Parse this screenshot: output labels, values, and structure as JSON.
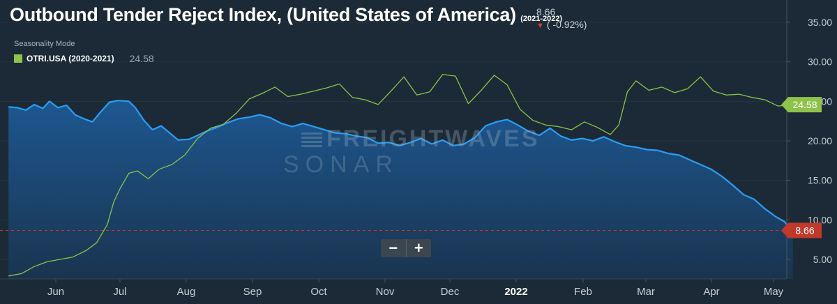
{
  "header": {
    "title": "Outbound Tender Reject Index, (United States of America)",
    "period": "(2021-2022)",
    "current_value": "8.66",
    "change": "( -0.92%)",
    "seasonality_label": "Seasonality Mode",
    "legend_label": "OTRI.USA (2020-2021)",
    "legend_value": "24.58"
  },
  "watermark": {
    "line1": "FREIGHTWAVES",
    "line2": "SONAR"
  },
  "zoom": {
    "minus": "−",
    "plus": "+"
  },
  "colors": {
    "background": "#1b2a36",
    "current_line": "#2a9df4",
    "current_fill": "#1c4f82",
    "prior_line": "#8dc34a",
    "ref_line": "#c0392b",
    "badge_current": "#c0392b",
    "badge_prior": "#8dc34a"
  },
  "chart_data": {
    "type": "area",
    "title": "Outbound Tender Reject Index, (United States of America)",
    "x_ticks": [
      "Jun",
      "Jul",
      "Aug",
      "Sep",
      "Oct",
      "Nov",
      "Dec",
      "2022",
      "Feb",
      "Mar",
      "Apr",
      "May"
    ],
    "y_ticks": [
      "5.00",
      "10.00",
      "15.00",
      "20.00",
      "25.00",
      "30.00",
      "35.00"
    ],
    "ylim": [
      1.5,
      38
    ],
    "x_date_range": [
      "2021-05-10",
      "2022-05-08"
    ],
    "series": [
      {
        "name": "OTRI.USA (2021-2022)",
        "style": "area",
        "points": [
          [
            "2021-05-10",
            24.3
          ],
          [
            "2021-05-14",
            24.2
          ],
          [
            "2021-05-18",
            23.9
          ],
          [
            "2021-05-22",
            24.6
          ],
          [
            "2021-05-26",
            24.1
          ],
          [
            "2021-05-29",
            25.0
          ],
          [
            "2021-06-02",
            24.2
          ],
          [
            "2021-06-06",
            24.5
          ],
          [
            "2021-06-10",
            23.3
          ],
          [
            "2021-06-14",
            22.8
          ],
          [
            "2021-06-18",
            22.4
          ],
          [
            "2021-06-22",
            23.7
          ],
          [
            "2021-06-26",
            24.9
          ],
          [
            "2021-06-30",
            25.1
          ],
          [
            "2021-07-05",
            25.0
          ],
          [
            "2021-07-08",
            24.2
          ],
          [
            "2021-07-12",
            22.6
          ],
          [
            "2021-07-16",
            21.4
          ],
          [
            "2021-07-20",
            21.9
          ],
          [
            "2021-07-24",
            21.0
          ],
          [
            "2021-07-28",
            20.1
          ],
          [
            "2021-08-02",
            20.2
          ],
          [
            "2021-08-06",
            20.7
          ],
          [
            "2021-08-10",
            21.2
          ],
          [
            "2021-08-15",
            21.7
          ],
          [
            "2021-08-20",
            22.3
          ],
          [
            "2021-08-25",
            22.8
          ],
          [
            "2021-08-30",
            23.0
          ],
          [
            "2021-09-04",
            23.3
          ],
          [
            "2021-09-09",
            22.9
          ],
          [
            "2021-09-14",
            22.2
          ],
          [
            "2021-09-19",
            21.8
          ],
          [
            "2021-09-24",
            22.2
          ],
          [
            "2021-09-29",
            21.8
          ],
          [
            "2021-10-04",
            21.4
          ],
          [
            "2021-10-09",
            21.0
          ],
          [
            "2021-10-14",
            20.9
          ],
          [
            "2021-10-19",
            20.6
          ],
          [
            "2021-10-24",
            20.4
          ],
          [
            "2021-10-29",
            19.7
          ],
          [
            "2021-11-03",
            19.8
          ],
          [
            "2021-11-08",
            19.4
          ],
          [
            "2021-11-13",
            19.8
          ],
          [
            "2021-11-18",
            20.3
          ],
          [
            "2021-11-23",
            19.6
          ],
          [
            "2021-11-28",
            20.1
          ],
          [
            "2021-12-03",
            19.4
          ],
          [
            "2021-12-08",
            19.6
          ],
          [
            "2021-12-13",
            20.4
          ],
          [
            "2021-12-18",
            21.9
          ],
          [
            "2021-12-23",
            22.4
          ],
          [
            "2021-12-28",
            22.7
          ],
          [
            "2022-01-02",
            22.0
          ],
          [
            "2022-01-07",
            21.2
          ],
          [
            "2022-01-12",
            20.7
          ],
          [
            "2022-01-17",
            21.6
          ],
          [
            "2022-01-22",
            20.6
          ],
          [
            "2022-01-27",
            20.1
          ],
          [
            "2022-02-01",
            20.3
          ],
          [
            "2022-02-06",
            20.0
          ],
          [
            "2022-02-11",
            20.5
          ],
          [
            "2022-02-16",
            19.9
          ],
          [
            "2022-02-21",
            19.4
          ],
          [
            "2022-02-26",
            19.2
          ],
          [
            "2022-03-03",
            18.9
          ],
          [
            "2022-03-08",
            18.8
          ],
          [
            "2022-03-13",
            18.4
          ],
          [
            "2022-03-18",
            18.2
          ],
          [
            "2022-03-23",
            17.6
          ],
          [
            "2022-03-28",
            17.0
          ],
          [
            "2022-04-02",
            16.4
          ],
          [
            "2022-04-07",
            15.5
          ],
          [
            "2022-04-12",
            14.4
          ],
          [
            "2022-04-17",
            13.2
          ],
          [
            "2022-04-22",
            12.6
          ],
          [
            "2022-04-27",
            11.4
          ],
          [
            "2022-05-02",
            10.4
          ],
          [
            "2022-05-06",
            9.8
          ],
          [
            "2022-05-08",
            9.1
          ],
          [
            "2022-05-10",
            8.66
          ]
        ]
      },
      {
        "name": "OTRI.USA (2020-2021)",
        "style": "line",
        "points": [
          [
            "2021-05-10",
            2.9
          ],
          [
            "2021-05-16",
            3.2
          ],
          [
            "2021-05-22",
            4.1
          ],
          [
            "2021-05-28",
            4.7
          ],
          [
            "2021-06-03",
            5.0
          ],
          [
            "2021-06-09",
            5.3
          ],
          [
            "2021-06-15",
            6.1
          ],
          [
            "2021-06-20",
            7.1
          ],
          [
            "2021-06-25",
            9.4
          ],
          [
            "2021-06-28",
            12.3
          ],
          [
            "2021-07-01",
            14.0
          ],
          [
            "2021-07-05",
            15.9
          ],
          [
            "2021-07-09",
            16.2
          ],
          [
            "2021-07-14",
            15.2
          ],
          [
            "2021-07-19",
            16.4
          ],
          [
            "2021-07-25",
            17.0
          ],
          [
            "2021-07-31",
            18.2
          ],
          [
            "2021-08-06",
            20.3
          ],
          [
            "2021-08-12",
            21.6
          ],
          [
            "2021-08-18",
            22.1
          ],
          [
            "2021-08-24",
            23.5
          ],
          [
            "2021-08-30",
            25.3
          ],
          [
            "2021-09-05",
            26.0
          ],
          [
            "2021-09-11",
            26.8
          ],
          [
            "2021-09-17",
            25.6
          ],
          [
            "2021-09-23",
            25.9
          ],
          [
            "2021-09-29",
            26.3
          ],
          [
            "2021-10-05",
            26.7
          ],
          [
            "2021-10-11",
            27.2
          ],
          [
            "2021-10-17",
            25.5
          ],
          [
            "2021-10-23",
            25.2
          ],
          [
            "2021-10-29",
            24.6
          ],
          [
            "2021-11-04",
            26.3
          ],
          [
            "2021-11-10",
            28.1
          ],
          [
            "2021-11-16",
            25.8
          ],
          [
            "2021-11-22",
            26.2
          ],
          [
            "2021-11-28",
            28.4
          ],
          [
            "2021-12-04",
            28.2
          ],
          [
            "2021-12-10",
            24.7
          ],
          [
            "2021-12-16",
            26.4
          ],
          [
            "2021-12-22",
            28.3
          ],
          [
            "2021-12-28",
            27.1
          ],
          [
            "2022-01-03",
            24.0
          ],
          [
            "2022-01-09",
            22.6
          ],
          [
            "2022-01-15",
            22.0
          ],
          [
            "2022-01-21",
            21.8
          ],
          [
            "2022-01-27",
            21.4
          ],
          [
            "2022-02-02",
            22.4
          ],
          [
            "2022-02-08",
            21.7
          ],
          [
            "2022-02-14",
            20.8
          ],
          [
            "2022-02-18",
            22.0
          ],
          [
            "2022-02-22",
            26.2
          ],
          [
            "2022-02-26",
            27.6
          ],
          [
            "2022-03-04",
            26.4
          ],
          [
            "2022-03-10",
            26.8
          ],
          [
            "2022-03-16",
            26.1
          ],
          [
            "2022-03-22",
            26.6
          ],
          [
            "2022-03-28",
            28.1
          ],
          [
            "2022-04-03",
            26.3
          ],
          [
            "2022-04-09",
            25.8
          ],
          [
            "2022-04-15",
            25.9
          ],
          [
            "2022-04-21",
            25.5
          ],
          [
            "2022-04-27",
            25.2
          ],
          [
            "2022-05-03",
            24.4
          ],
          [
            "2022-05-10",
            24.58
          ]
        ]
      }
    ],
    "reference_line": {
      "value": 8.66,
      "style": "dashed"
    },
    "value_badges": [
      {
        "series": "OTRI.USA (2020-2021)",
        "value": "24.58"
      },
      {
        "series": "OTRI.USA (2021-2022)",
        "value": "8.66"
      }
    ]
  }
}
